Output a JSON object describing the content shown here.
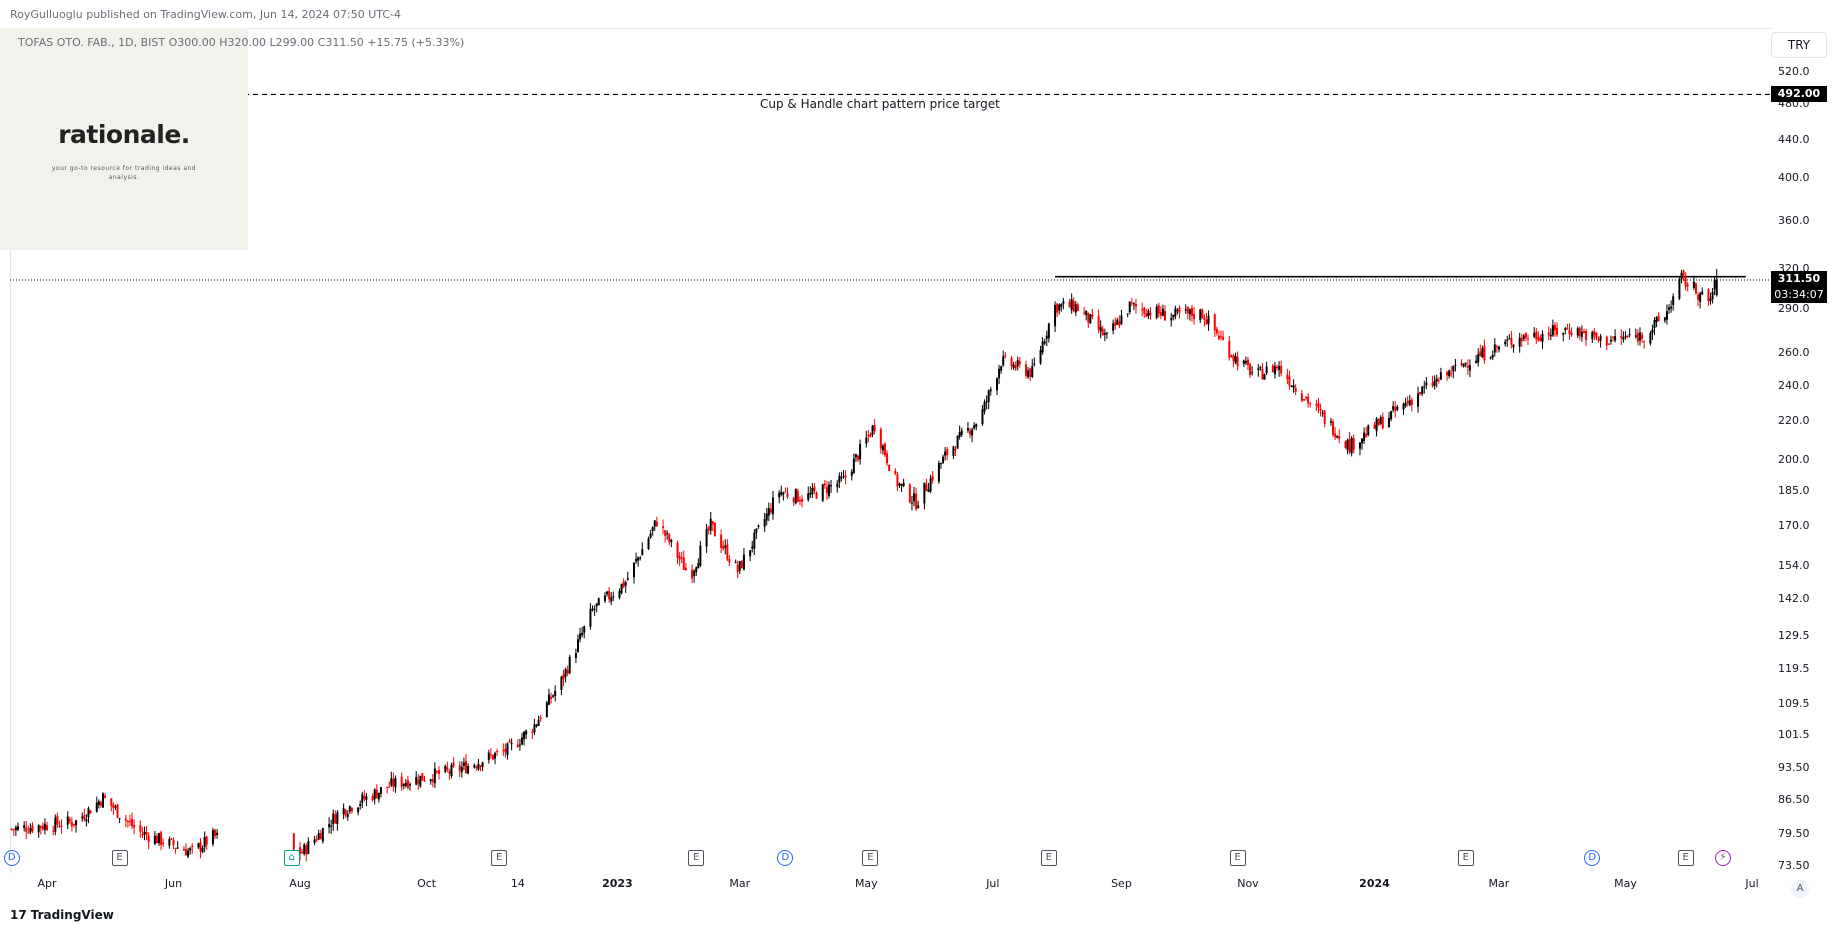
{
  "header": {
    "publisher": "RoyGulluoglu published on TradingView.com, Jun 14, 2024 07:50 UTC-4"
  },
  "legend": {
    "symbol": "TOFAS OTO. FAB., 1D, BIST",
    "ohlc": "O300.00  H320.00  L299.00  C311.50  +15.75 (+5.33%)"
  },
  "logo": {
    "word": "rationale.",
    "tagline": "your go-to resource for trading ideas and analysis."
  },
  "currency_button": "TRY",
  "annotation": "Cup & Handle chart pattern price target",
  "labels": {
    "target_price": "492.00",
    "last_price": "311.50",
    "countdown": "03:34:07"
  },
  "footer": {
    "brand": "TradingView",
    "auto_button": "A"
  },
  "colors": {
    "up": "#000000",
    "down": "#ff0000",
    "target_line": "#000000",
    "neckline": "#000000"
  },
  "chart_data": {
    "type": "candlestick",
    "scale": "log",
    "y_ticks": [
      520.0,
      480.0,
      440.0,
      400.0,
      360.0,
      320.0,
      290.0,
      260.0,
      240.0,
      220.0,
      200.0,
      185.0,
      170.0,
      154.0,
      142.0,
      129.5,
      119.5,
      109.5,
      101.5,
      93.5,
      86.5,
      79.5,
      73.5
    ],
    "y_tick_labels": [
      "520.0",
      "480.0",
      "440.0",
      "400.0",
      "360.0",
      "320.0",
      "290.0",
      "260.0",
      "240.0",
      "220.0",
      "200.0",
      "185.0",
      "170.0",
      "154.0",
      "142.0",
      "129.5",
      "119.5",
      "109.5",
      "101.5",
      "93.50",
      "86.50",
      "79.50",
      "73.50"
    ],
    "x_ticks": [
      {
        "label": "Apr",
        "date": "2022-04-01"
      },
      {
        "label": "Jun",
        "date": "2022-06-01"
      },
      {
        "label": "Aug",
        "date": "2022-08-01"
      },
      {
        "label": "Oct",
        "date": "2022-10-01"
      },
      {
        "label": "14",
        "date": "2022-11-14"
      },
      {
        "label": "2023",
        "date": "2023-01-01",
        "bold": true
      },
      {
        "label": "Mar",
        "date": "2023-03-01"
      },
      {
        "label": "May",
        "date": "2023-05-01"
      },
      {
        "label": "Jul",
        "date": "2023-07-01"
      },
      {
        "label": "Sep",
        "date": "2023-09-01"
      },
      {
        "label": "Nov",
        "date": "2023-11-01"
      },
      {
        "label": "2024",
        "date": "2024-01-01",
        "bold": true
      },
      {
        "label": "Mar",
        "date": "2024-03-01"
      },
      {
        "label": "May",
        "date": "2024-05-01"
      },
      {
        "label": "Jul",
        "date": "2024-07-01"
      }
    ],
    "price_path": [
      {
        "date": "2022-03-15",
        "close": 80.5
      },
      {
        "date": "2022-04-15",
        "close": 82.0
      },
      {
        "date": "2022-04-28",
        "close": 87.0
      },
      {
        "date": "2022-05-15",
        "close": 80.0
      },
      {
        "date": "2022-06-10",
        "close": 76.0
      },
      {
        "date": "2022-06-20",
        "close": 79.0
      },
      {
        "date": "2022-08-02",
        "close": 76.0
      },
      {
        "date": "2022-08-20",
        "close": 84.0
      },
      {
        "date": "2022-09-15",
        "close": 90.0
      },
      {
        "date": "2022-10-15",
        "close": 93.0
      },
      {
        "date": "2022-11-10",
        "close": 98.0
      },
      {
        "date": "2022-11-22",
        "close": 104.0
      },
      {
        "date": "2022-12-05",
        "close": 116.0
      },
      {
        "date": "2022-12-20",
        "close": 138.0
      },
      {
        "date": "2023-01-05",
        "close": 148.0
      },
      {
        "date": "2023-01-20",
        "close": 172.0
      },
      {
        "date": "2023-02-05",
        "close": 150.0
      },
      {
        "date": "2023-02-15",
        "close": 170.0
      },
      {
        "date": "2023-02-28",
        "close": 152.0
      },
      {
        "date": "2023-03-20",
        "close": 185.0
      },
      {
        "date": "2023-04-01",
        "close": 182.0
      },
      {
        "date": "2023-04-20",
        "close": 190.0
      },
      {
        "date": "2023-05-05",
        "close": 218.0
      },
      {
        "date": "2023-05-15",
        "close": 190.0
      },
      {
        "date": "2023-05-25",
        "close": 180.0
      },
      {
        "date": "2023-06-10",
        "close": 205.0
      },
      {
        "date": "2023-06-25",
        "close": 222.0
      },
      {
        "date": "2023-07-05",
        "close": 255.0
      },
      {
        "date": "2023-07-20",
        "close": 248.0
      },
      {
        "date": "2023-07-31",
        "close": 292.0
      },
      {
        "date": "2023-08-10",
        "close": 292.0
      },
      {
        "date": "2023-08-25",
        "close": 270.0
      },
      {
        "date": "2023-09-05",
        "close": 292.0
      },
      {
        "date": "2023-09-25",
        "close": 285.0
      },
      {
        "date": "2023-10-10",
        "close": 287.0
      },
      {
        "date": "2023-10-25",
        "close": 258.0
      },
      {
        "date": "2023-11-05",
        "close": 246.0
      },
      {
        "date": "2023-11-15",
        "close": 252.0
      },
      {
        "date": "2023-12-01",
        "close": 230.0
      },
      {
        "date": "2023-12-20",
        "close": 207.0
      },
      {
        "date": "2024-01-05",
        "close": 220.0
      },
      {
        "date": "2024-01-25",
        "close": 238.0
      },
      {
        "date": "2024-02-15",
        "close": 255.0
      },
      {
        "date": "2024-03-10",
        "close": 270.0
      },
      {
        "date": "2024-04-05",
        "close": 276.0
      },
      {
        "date": "2024-04-20",
        "close": 268.0
      },
      {
        "date": "2024-05-10",
        "close": 272.0
      },
      {
        "date": "2024-05-20",
        "close": 285.0
      },
      {
        "date": "2024-05-28",
        "close": 312.0
      },
      {
        "date": "2024-06-03",
        "close": 305.0
      },
      {
        "date": "2024-06-10",
        "close": 294.0
      },
      {
        "date": "2024-06-14",
        "close": 311.5
      }
    ],
    "horizontal_lines": [
      {
        "name": "price target",
        "price": 492.0,
        "style": "dashed"
      },
      {
        "name": "cup rim / neckline",
        "price": 314.0,
        "from": "2023-07-31",
        "to": "2024-06-28",
        "style": "solid"
      },
      {
        "name": "last price",
        "price": 311.5,
        "style": "dotted"
      }
    ],
    "events": [
      {
        "type": "D",
        "date": "2022-03-15"
      },
      {
        "type": "E",
        "date": "2022-05-06"
      },
      {
        "type": "S",
        "date": "2022-07-28"
      },
      {
        "type": "E",
        "date": "2022-11-05"
      },
      {
        "type": "E",
        "date": "2023-02-08"
      },
      {
        "type": "D",
        "date": "2023-03-23"
      },
      {
        "type": "E",
        "date": "2023-05-03"
      },
      {
        "type": "E",
        "date": "2023-07-28"
      },
      {
        "type": "E",
        "date": "2023-10-27"
      },
      {
        "type": "E",
        "date": "2024-02-14"
      },
      {
        "type": "D",
        "date": "2024-04-15"
      },
      {
        "type": "E",
        "date": "2024-05-30"
      },
      {
        "type": "F",
        "date": "2024-06-17"
      }
    ]
  }
}
